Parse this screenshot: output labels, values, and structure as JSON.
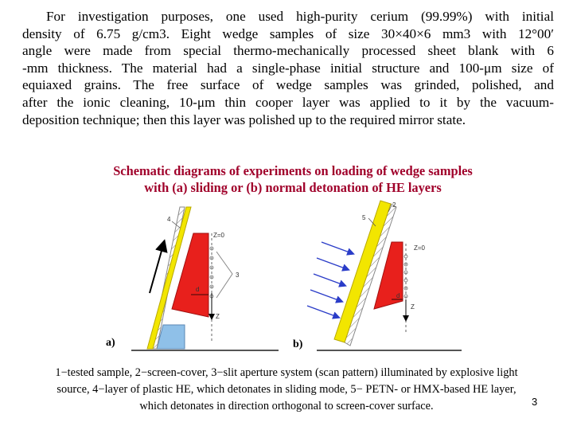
{
  "paragraph": {
    "lines": [
      "For investigation purposes, one used high-purity cerium (99.99%) with initial",
      "density of 6.75 g/cm3. Eight wedge samples of size 30×40×6 mm3 with 12°00′",
      "angle were made from special thermo-mechanically processed sheet blank with 6",
      "-mm thickness. The material had a single-phase initial structure and 100-μm size of",
      "equiaxed grains. The free surface of wedge samples was grinded, polished, and",
      "after the ionic cleaning, 10-μm thin cooper layer was applied to it by the vacuum-",
      "deposition technique; then this layer was polished up to the required mirror state."
    ]
  },
  "heading": {
    "line1": "Schematic diagrams of experiments on loading of wedge samples",
    "line2": "with (a) sliding or (b) normal detonation of  HE layers"
  },
  "figure": {
    "label_a": "a)",
    "label_b": "b)",
    "a_num_4": "4",
    "a_num_3": "3",
    "a_z0": "Z=0",
    "a_d": "d",
    "a_z": "Z",
    "b_num_5": "5",
    "b_num_2": "2",
    "b_z0": "Z=0",
    "b_d": "d",
    "b_z": "Z",
    "colors": {
      "sample": "#e8201c",
      "plastic_he": "#f2e600",
      "screen": "#8fc0e8",
      "arrows": "#2a3cc8"
    }
  },
  "caption": {
    "line1": "1−tested sample, 2−screen-cover, 3−slit aperture system (scan pattern) illuminated by explosive light",
    "line2": "source, 4−layer of plastic HE, which detonates in sliding mode, 5− PETN- or HMX-based  HE layer,",
    "line3": "which detonates in direction orthogonal to screen-cover surface."
  },
  "page_number": "3"
}
